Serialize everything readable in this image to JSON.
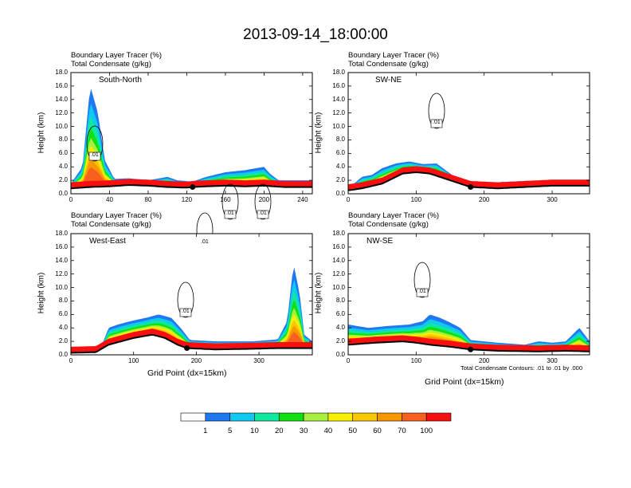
{
  "title": "2013-09-14_18:00:00",
  "panel_title_line1": "Boundary Layer Tracer    (%)",
  "panel_title_line2": "Total Condensate    (g/kg)",
  "ylabel": "Height (km)",
  "xlabel": "Grid Point (dx=15km)",
  "contour_note": "Total Condensate Contours: .01 to .01 by .000",
  "colors": {
    "levels": [
      "#ffffff",
      "#1e78f0",
      "#10c8f0",
      "#10e8a0",
      "#10e010",
      "#a8f040",
      "#f8f000",
      "#f8c800",
      "#f89800",
      "#f86020",
      "#f81010"
    ]
  },
  "colorbar_labels": [
    "1",
    "5",
    "10",
    "20",
    "30",
    "40",
    "50",
    "60",
    "70",
    "100"
  ],
  "chart_data": [
    {
      "type": "heatmap",
      "name": "South-North",
      "label": "South-North",
      "xlim": [
        0,
        250
      ],
      "ylim": [
        0,
        18
      ],
      "xticks": [
        "0",
        "40",
        "80",
        "120",
        "160",
        "200",
        "240"
      ],
      "xtick_values": [
        0,
        40,
        80,
        120,
        160,
        200,
        240
      ],
      "yticks": [
        "0.0",
        "2.0",
        "4.0",
        "6.0",
        "8.0",
        "10.0",
        "12.0",
        "14.0",
        "16.0",
        "18.0"
      ],
      "contour_labels": [
        ".01",
        ".01",
        ".01",
        ".01"
      ],
      "terrain": [
        [
          0,
          0.8
        ],
        [
          20,
          1.0
        ],
        [
          40,
          1.1
        ],
        [
          60,
          1.3
        ],
        [
          80,
          1.2
        ],
        [
          100,
          1.0
        ],
        [
          120,
          0.9
        ],
        [
          126,
          1.0
        ],
        [
          140,
          1.1
        ],
        [
          160,
          1.2
        ],
        [
          180,
          1.1
        ],
        [
          200,
          1.2
        ],
        [
          220,
          1.0
        ],
        [
          250,
          1.0
        ]
      ],
      "tracer_top": [
        [
          0,
          1.5
        ],
        [
          12,
          4
        ],
        [
          20,
          16
        ],
        [
          28,
          12
        ],
        [
          35,
          5
        ],
        [
          45,
          2.2
        ],
        [
          60,
          2.3
        ],
        [
          80,
          2.0
        ],
        [
          100,
          2.5
        ],
        [
          110,
          2.0
        ],
        [
          126,
          1.8
        ],
        [
          140,
          2.5
        ],
        [
          160,
          3.2
        ],
        [
          180,
          3.5
        ],
        [
          200,
          4.0
        ],
        [
          206,
          3.0
        ],
        [
          215,
          2.0
        ],
        [
          250,
          2.0
        ]
      ],
      "marker_x": 126
    },
    {
      "type": "heatmap",
      "name": "SW-NE",
      "label": "SW-NE",
      "xlim": [
        0,
        355
      ],
      "ylim": [
        0,
        18
      ],
      "xticks": [
        "0",
        "100",
        "200",
        "300"
      ],
      "xtick_values": [
        0,
        100,
        200,
        300
      ],
      "yticks": [
        "0.0",
        "2.0",
        "4.0",
        "6.0",
        "8.0",
        "10.0",
        "12.0",
        "14.0",
        "16.0",
        "18.0"
      ],
      "contour_labels": [
        ".01"
      ],
      "terrain": [
        [
          0,
          0.5
        ],
        [
          20,
          0.8
        ],
        [
          50,
          1.5
        ],
        [
          70,
          2.5
        ],
        [
          80,
          3.0
        ],
        [
          100,
          3.2
        ],
        [
          120,
          3.0
        ],
        [
          150,
          2.0
        ],
        [
          180,
          1.0
        ],
        [
          220,
          0.8
        ],
        [
          260,
          1.0
        ],
        [
          300,
          1.2
        ],
        [
          355,
          1.2
        ]
      ],
      "tracer_top": [
        [
          0,
          1.2
        ],
        [
          10,
          1.6
        ],
        [
          20,
          2.5
        ],
        [
          35,
          2.8
        ],
        [
          50,
          3.8
        ],
        [
          70,
          4.5
        ],
        [
          90,
          4.8
        ],
        [
          110,
          4.4
        ],
        [
          130,
          4.5
        ],
        [
          150,
          3.0
        ],
        [
          165,
          2.0
        ],
        [
          180,
          1.8
        ],
        [
          220,
          1.7
        ],
        [
          260,
          1.9
        ],
        [
          300,
          2.0
        ],
        [
          355,
          2.0
        ]
      ],
      "marker_x": 180
    },
    {
      "type": "heatmap",
      "name": "West-East",
      "label": "West-East",
      "xlim": [
        0,
        385
      ],
      "ylim": [
        0,
        18
      ],
      "xticks": [
        "0",
        "100",
        "200",
        "300"
      ],
      "xtick_values": [
        0,
        100,
        200,
        300
      ],
      "yticks": [
        "0.0",
        "2.0",
        "4.0",
        "6.0",
        "8.0",
        "10.0",
        "12.0",
        "14.0",
        "16.0",
        "18.0"
      ],
      "contour_labels": [
        ".01"
      ],
      "terrain": [
        [
          0,
          0.3
        ],
        [
          40,
          0.4
        ],
        [
          60,
          1.5
        ],
        [
          80,
          2.0
        ],
        [
          100,
          2.5
        ],
        [
          130,
          3.0
        ],
        [
          150,
          2.5
        ],
        [
          170,
          1.5
        ],
        [
          185,
          1.0
        ],
        [
          230,
          0.8
        ],
        [
          290,
          0.9
        ],
        [
          330,
          1.0
        ],
        [
          385,
          1.0
        ]
      ],
      "tracer_top": [
        [
          0,
          0.6
        ],
        [
          40,
          0.8
        ],
        [
          52,
          2.0
        ],
        [
          60,
          4.0
        ],
        [
          75,
          4.5
        ],
        [
          95,
          5.0
        ],
        [
          120,
          5.5
        ],
        [
          140,
          6.0
        ],
        [
          160,
          5.5
        ],
        [
          175,
          4.0
        ],
        [
          190,
          2.2
        ],
        [
          230,
          2.0
        ],
        [
          290,
          2.0
        ],
        [
          330,
          2.3
        ],
        [
          345,
          5.0
        ],
        [
          355,
          13.5
        ],
        [
          365,
          9.0
        ],
        [
          372,
          3.0
        ],
        [
          385,
          2.0
        ]
      ],
      "marker_x": 185
    },
    {
      "type": "heatmap",
      "name": "NW-SE",
      "label": "NW-SE",
      "xlim": [
        0,
        355
      ],
      "ylim": [
        0,
        18
      ],
      "xticks": [
        "0",
        "100",
        "200",
        "300"
      ],
      "xtick_values": [
        0,
        100,
        200,
        300
      ],
      "yticks": [
        "0.0",
        "2.0",
        "4.0",
        "6.0",
        "8.0",
        "10.0",
        "12.0",
        "14.0",
        "16.0",
        "18.0"
      ],
      "contour_labels": [
        ".01"
      ],
      "terrain": [
        [
          0,
          1.5
        ],
        [
          40,
          1.8
        ],
        [
          80,
          2.0
        ],
        [
          100,
          1.8
        ],
        [
          120,
          1.5
        ],
        [
          150,
          1.2
        ],
        [
          180,
          0.8
        ],
        [
          220,
          0.6
        ],
        [
          280,
          0.5
        ],
        [
          320,
          0.6
        ],
        [
          355,
          0.5
        ]
      ],
      "tracer_top": [
        [
          0,
          4.5
        ],
        [
          30,
          4.0
        ],
        [
          60,
          4.3
        ],
        [
          90,
          4.5
        ],
        [
          110,
          5.0
        ],
        [
          120,
          6.0
        ],
        [
          135,
          5.5
        ],
        [
          150,
          4.8
        ],
        [
          165,
          4.0
        ],
        [
          180,
          2.2
        ],
        [
          220,
          1.8
        ],
        [
          260,
          1.5
        ],
        [
          280,
          2.0
        ],
        [
          300,
          1.8
        ],
        [
          320,
          2.0
        ],
        [
          340,
          4.0
        ],
        [
          355,
          2.0
        ]
      ],
      "marker_x": 180
    }
  ]
}
